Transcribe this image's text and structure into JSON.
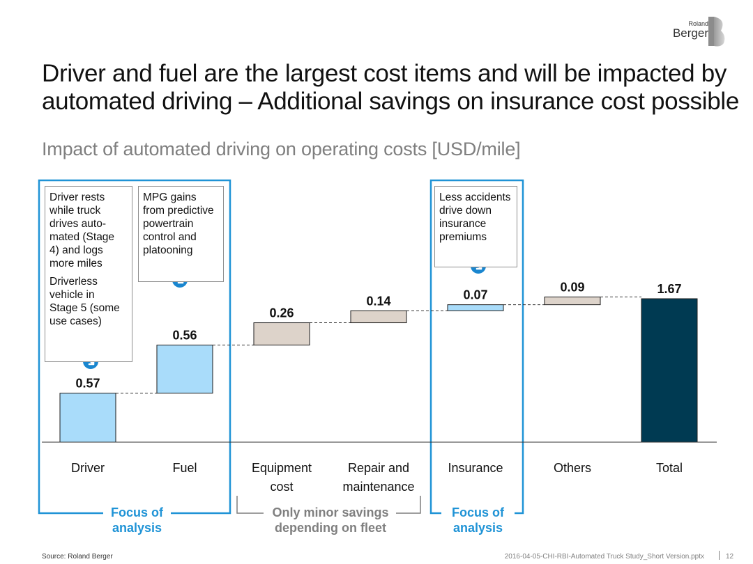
{
  "header": {
    "title": "Driver and fuel are the largest cost items and will be impacted by automated driving – Additional savings on insurance cost possible",
    "subtitle": "Impact of automated driving on operating costs [USD/mile]"
  },
  "logo": {
    "small": "Roland",
    "big": "Berger"
  },
  "notes": {
    "driver_1": "Driver rests\nwhile truck\ndrives auto-\nmated (Stage\n4) and logs\nmore miles",
    "driver_2": "Driverless\nvehicle in\nStage 5 (some\nuse cases)",
    "fuel": "MPG gains\nfrom predictive\npowertrain\ncontrol and\nplatooning",
    "insurance": "Less accidents\ndrive down\ninsurance\npremiums"
  },
  "groups": {
    "focus_left": "Focus of\nanalysis",
    "minor": "Only minor savings\ndepending on fleet",
    "focus_right": "Focus of\nanalysis"
  },
  "colors": {
    "focus_blue": "#1f93d6",
    "light_blue": "#a9dcfa",
    "beige": "#ddd3ca",
    "total": "#003a52",
    "arrow_blue": "#1a86cf"
  },
  "icons": [
    "arrow-down-right-icon"
  ],
  "footer": {
    "source": "Source: Roland Berger",
    "file": "2016-04-05-CHI-RBI-Automated Truck Study_Short Version.pptx",
    "page": "12"
  },
  "chart_data": {
    "type": "waterfall",
    "categories": [
      "Driver",
      "Fuel",
      "Equipment cost",
      "Repair and maintenance",
      "Insurance",
      "Others",
      "Total"
    ],
    "values": [
      0.57,
      0.56,
      0.26,
      0.14,
      0.07,
      0.09,
      1.67
    ],
    "value_labels": [
      "0.57",
      "0.56",
      "0.26",
      "0.14",
      "0.07",
      "0.09",
      "1.67"
    ],
    "is_total": [
      false,
      false,
      false,
      false,
      false,
      false,
      true
    ],
    "highlighted": [
      true,
      true,
      false,
      false,
      true,
      false,
      false
    ],
    "ylim": [
      0,
      1.67
    ],
    "grid": false,
    "xlabel": "",
    "ylabel": ""
  }
}
